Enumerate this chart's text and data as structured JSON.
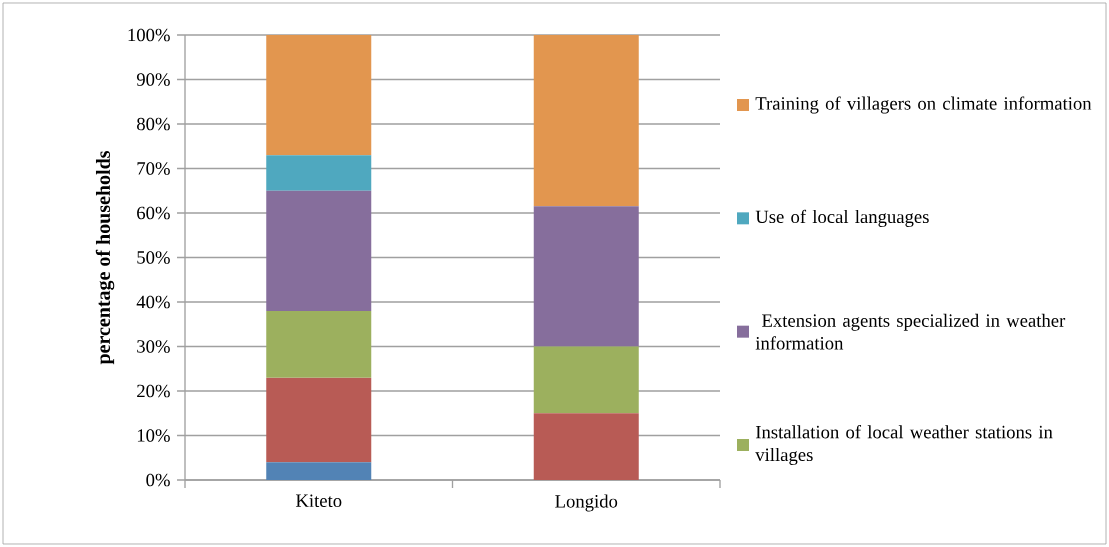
{
  "chart_data": {
    "type": "bar",
    "stacked": true,
    "ylabel": "percentage of households",
    "categories": [
      "Kiteto",
      "Longido"
    ],
    "series": [
      {
        "color": "#5283b5",
        "values": [
          4,
          0
        ]
      },
      {
        "color": "#b85b55",
        "values": [
          19,
          15
        ]
      },
      {
        "name": "Installation of local weather stations in villages",
        "color": "#9cb05e",
        "values": [
          15,
          15
        ]
      },
      {
        "name": " Extension agents specialized in weather information",
        "color": "#866e9c",
        "values": [
          27,
          31.5
        ]
      },
      {
        "name": "Use of local languages",
        "color": "#4fa8bf",
        "values": [
          8,
          0
        ]
      },
      {
        "name": "Training of villagers on climate information",
        "color": "#e2964f",
        "values": [
          27,
          38.5
        ]
      }
    ],
    "ylim": [
      0,
      100
    ],
    "yticks": [
      {
        "value": 0,
        "label": "0%"
      },
      {
        "value": 10,
        "label": "10%"
      },
      {
        "value": 20,
        "label": "20%"
      },
      {
        "value": 30,
        "label": "30%"
      },
      {
        "value": 40,
        "label": "40%"
      },
      {
        "value": 50,
        "label": "50%"
      },
      {
        "value": 60,
        "label": "60%"
      },
      {
        "value": 70,
        "label": "70%"
      },
      {
        "value": 80,
        "label": "80%"
      },
      {
        "value": 90,
        "label": "90%"
      },
      {
        "value": 100,
        "label": "100%"
      }
    ],
    "grid": "y",
    "legend": "right"
  }
}
